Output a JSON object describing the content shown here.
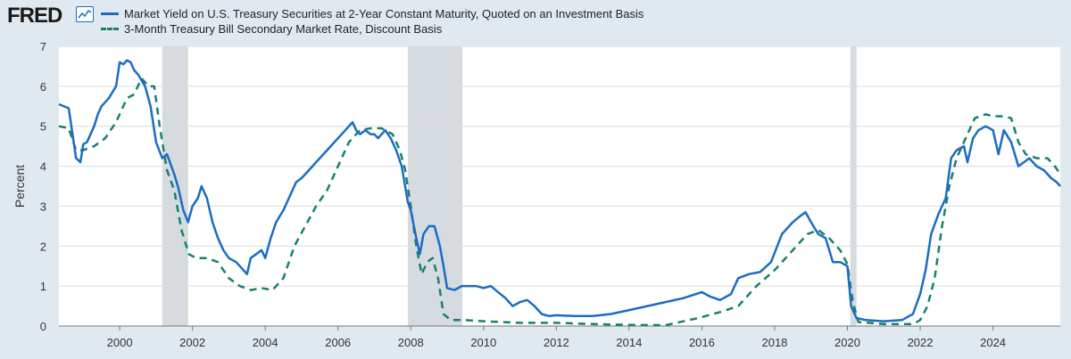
{
  "header": {
    "logo_text": "FRED",
    "logo_icon": "line-chart-icon"
  },
  "chart_data": {
    "type": "line",
    "title": "",
    "xlabel": "",
    "ylabel": "Percent",
    "xlim": [
      1998.33,
      2025.85
    ],
    "ylim": [
      0,
      7
    ],
    "yticks": [
      0,
      1,
      2,
      3,
      4,
      5,
      6,
      7
    ],
    "xticks": [
      2000,
      2002,
      2004,
      2006,
      2008,
      2010,
      2012,
      2014,
      2016,
      2018,
      2020,
      2022,
      2024
    ],
    "grid": true,
    "legend_position": "top-left",
    "recessions": [
      [
        2001.17,
        2001.88
      ],
      [
        2007.92,
        2009.42
      ],
      [
        2020.08,
        2020.25
      ]
    ],
    "colors": {
      "series1": "#1c6cc4",
      "series2": "#17806f",
      "recession": "#d6dbe0",
      "grid": "#dcdcdc"
    },
    "series": [
      {
        "name": "Market Yield on U.S. Treasury Securities at 2-Year Constant Maturity, Quoted on an Investment Basis",
        "style": "solid",
        "x": [
          1998.33,
          1998.6,
          1998.8,
          1998.92,
          1999.0,
          1999.1,
          1999.3,
          1999.4,
          1999.5,
          1999.7,
          1999.9,
          2000.0,
          2000.1,
          2000.2,
          2000.3,
          2000.4,
          2000.5,
          2000.7,
          2000.85,
          2001.0,
          2001.17,
          2001.3,
          2001.5,
          2001.6,
          2001.75,
          2001.88,
          2002.0,
          2002.15,
          2002.25,
          2002.4,
          2002.55,
          2002.7,
          2002.85,
          2003.0,
          2003.2,
          2003.4,
          2003.5,
          2003.6,
          2003.75,
          2003.9,
          2004.0,
          2004.15,
          2004.3,
          2004.5,
          2004.7,
          2004.85,
          2005.0,
          2005.2,
          2005.4,
          2005.6,
          2005.8,
          2006.0,
          2006.2,
          2006.4,
          2006.5,
          2006.6,
          2006.75,
          2006.9,
          2007.0,
          2007.1,
          2007.2,
          2007.3,
          2007.45,
          2007.6,
          2007.75,
          2007.92,
          2008.0,
          2008.15,
          2008.25,
          2008.35,
          2008.5,
          2008.65,
          2008.8,
          2008.9,
          2009.0,
          2009.2,
          2009.4,
          2009.6,
          2009.8,
          2010.0,
          2010.2,
          2010.4,
          2010.6,
          2010.8,
          2011.0,
          2011.2,
          2011.4,
          2011.6,
          2011.8,
          2012.0,
          2012.5,
          2013.0,
          2013.5,
          2014.0,
          2014.5,
          2015.0,
          2015.5,
          2016.0,
          2016.2,
          2016.5,
          2016.8,
          2017.0,
          2017.3,
          2017.6,
          2017.9,
          2018.2,
          2018.5,
          2018.7,
          2018.85,
          2019.0,
          2019.2,
          2019.4,
          2019.6,
          2019.8,
          2020.0,
          2020.1,
          2020.25,
          2020.5,
          2021.0,
          2021.5,
          2021.8,
          2022.0,
          2022.15,
          2022.3,
          2022.5,
          2022.7,
          2022.85,
          2023.0,
          2023.2,
          2023.3,
          2023.45,
          2023.6,
          2023.8,
          2024.0,
          2024.15,
          2024.3,
          2024.5,
          2024.7,
          2024.85,
          2025.0,
          2025.2,
          2025.4,
          2025.6,
          2025.75,
          2025.85
        ],
        "y": [
          5.55,
          5.45,
          4.2,
          4.1,
          4.55,
          4.6,
          5.0,
          5.3,
          5.5,
          5.7,
          6.0,
          6.6,
          6.55,
          6.65,
          6.6,
          6.4,
          6.3,
          6.0,
          5.5,
          4.6,
          4.2,
          4.3,
          3.8,
          3.5,
          2.9,
          2.6,
          3.0,
          3.2,
          3.5,
          3.2,
          2.6,
          2.2,
          1.9,
          1.7,
          1.6,
          1.4,
          1.3,
          1.7,
          1.8,
          1.9,
          1.7,
          2.2,
          2.6,
          2.9,
          3.3,
          3.6,
          3.7,
          3.9,
          4.1,
          4.3,
          4.5,
          4.7,
          4.9,
          5.1,
          4.9,
          4.8,
          4.9,
          4.8,
          4.8,
          4.7,
          4.8,
          4.9,
          4.7,
          4.4,
          4.0,
          3.1,
          2.9,
          2.2,
          1.8,
          2.3,
          2.5,
          2.5,
          2.0,
          1.5,
          0.95,
          0.9,
          1.0,
          1.0,
          1.0,
          0.95,
          1.0,
          0.85,
          0.7,
          0.5,
          0.6,
          0.65,
          0.5,
          0.3,
          0.25,
          0.27,
          0.25,
          0.25,
          0.3,
          0.4,
          0.5,
          0.6,
          0.7,
          0.85,
          0.75,
          0.65,
          0.8,
          1.2,
          1.3,
          1.35,
          1.6,
          2.3,
          2.6,
          2.75,
          2.85,
          2.6,
          2.3,
          2.2,
          1.6,
          1.6,
          1.5,
          0.5,
          0.2,
          0.15,
          0.12,
          0.15,
          0.3,
          0.8,
          1.4,
          2.3,
          2.8,
          3.2,
          4.2,
          4.4,
          4.5,
          4.1,
          4.7,
          4.9,
          5.0,
          4.9,
          4.3,
          4.9,
          4.6,
          4.0,
          4.1,
          4.2,
          4.0,
          3.9,
          3.7,
          3.6,
          3.5
        ]
      },
      {
        "name": "3-Month Treasury Bill Secondary Market Rate, Discount Basis",
        "style": "dashed",
        "x": [
          1998.33,
          1998.6,
          1998.8,
          1999.0,
          1999.3,
          1999.6,
          1999.9,
          2000.2,
          2000.4,
          2000.6,
          2000.8,
          2000.95,
          2001.1,
          2001.3,
          2001.5,
          2001.7,
          2001.9,
          2002.1,
          2002.4,
          2002.7,
          2003.0,
          2003.3,
          2003.6,
          2003.9,
          2004.2,
          2004.5,
          2004.8,
          2005.1,
          2005.4,
          2005.7,
          2006.0,
          2006.3,
          2006.6,
          2006.9,
          2007.2,
          2007.5,
          2007.7,
          2007.85,
          2008.0,
          2008.15,
          2008.3,
          2008.45,
          2008.6,
          2008.75,
          2008.9,
          2009.1,
          2009.5,
          2010.0,
          2011.0,
          2012.0,
          2013.0,
          2014.0,
          2015.0,
          2015.9,
          2016.5,
          2017.0,
          2017.5,
          2018.0,
          2018.5,
          2018.9,
          2019.2,
          2019.5,
          2019.8,
          2020.0,
          2020.15,
          2020.3,
          2021.0,
          2021.8,
          2022.0,
          2022.2,
          2022.4,
          2022.6,
          2022.8,
          2023.0,
          2023.3,
          2023.5,
          2023.8,
          2024.0,
          2024.3,
          2024.5,
          2024.7,
          2024.9,
          2025.2,
          2025.5,
          2025.7,
          2025.85
        ],
        "y": [
          5.0,
          4.95,
          4.4,
          4.4,
          4.5,
          4.7,
          5.1,
          5.7,
          5.8,
          6.2,
          6.0,
          6.0,
          5.0,
          3.9,
          3.4,
          2.4,
          1.8,
          1.7,
          1.7,
          1.6,
          1.2,
          1.0,
          0.9,
          0.95,
          0.9,
          1.2,
          2.0,
          2.5,
          3.0,
          3.4,
          4.0,
          4.6,
          4.9,
          4.95,
          4.95,
          4.8,
          4.4,
          3.9,
          3.0,
          2.0,
          1.3,
          1.6,
          1.7,
          1.2,
          0.3,
          0.15,
          0.15,
          0.12,
          0.08,
          0.08,
          0.05,
          0.03,
          0.02,
          0.2,
          0.35,
          0.5,
          1.0,
          1.4,
          1.9,
          2.3,
          2.4,
          2.2,
          1.9,
          1.55,
          0.6,
          0.1,
          0.05,
          0.05,
          0.15,
          0.5,
          1.2,
          2.5,
          3.5,
          4.2,
          4.8,
          5.2,
          5.3,
          5.25,
          5.25,
          5.2,
          4.6,
          4.3,
          4.2,
          4.2,
          4.0,
          3.8
        ]
      }
    ]
  }
}
